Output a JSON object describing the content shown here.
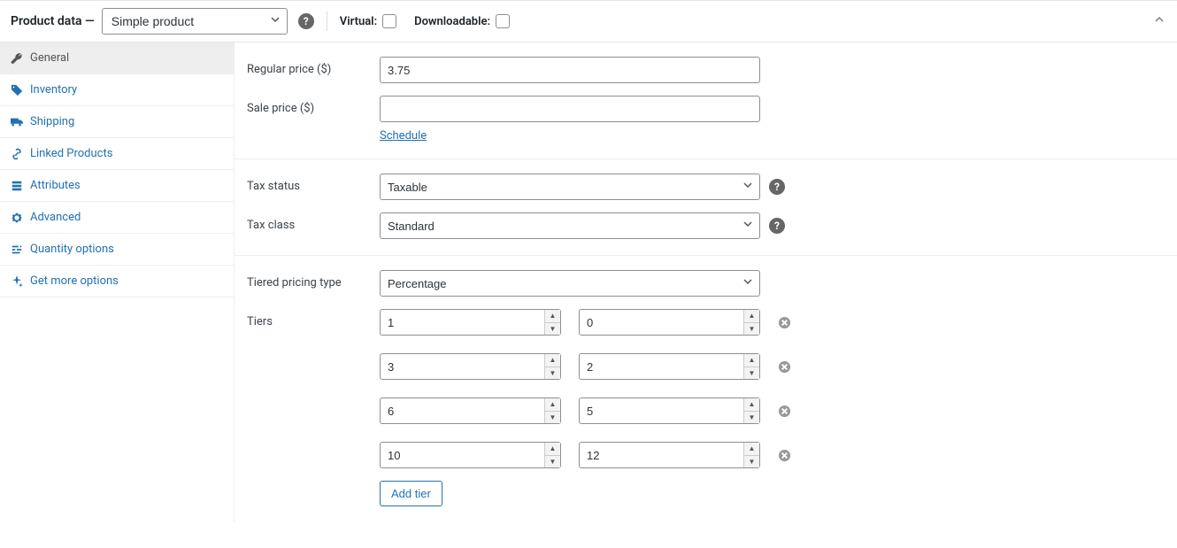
{
  "header": {
    "title": "Product data —",
    "productType": "Simple product",
    "virtualLabel": "Virtual:",
    "downloadableLabel": "Downloadable:",
    "virtualChecked": false,
    "downloadableChecked": false
  },
  "sidebar": {
    "items": [
      {
        "label": "General",
        "active": true
      },
      {
        "label": "Inventory",
        "active": false
      },
      {
        "label": "Shipping",
        "active": false
      },
      {
        "label": "Linked Products",
        "active": false
      },
      {
        "label": "Attributes",
        "active": false
      },
      {
        "label": "Advanced",
        "active": false
      },
      {
        "label": "Quantity options",
        "active": false
      },
      {
        "label": "Get more options",
        "active": false
      }
    ]
  },
  "pricing": {
    "regularPriceLabel": "Regular price ($)",
    "regularPriceValue": "3.75",
    "salePriceLabel": "Sale price ($)",
    "salePriceValue": "",
    "scheduleLabel": "Schedule"
  },
  "tax": {
    "taxStatusLabel": "Tax status",
    "taxStatusValue": "Taxable",
    "taxClassLabel": "Tax class",
    "taxClassValue": "Standard"
  },
  "tiered": {
    "typeLabel": "Tiered pricing type",
    "typeValue": "Percentage",
    "tiersLabel": "Tiers",
    "tiers": [
      {
        "qty": "1",
        "val": "0"
      },
      {
        "qty": "3",
        "val": "2"
      },
      {
        "qty": "6",
        "val": "5"
      },
      {
        "qty": "10",
        "val": "12"
      }
    ],
    "addTierLabel": "Add tier"
  },
  "colors": {
    "link": "#2271b1",
    "border": "#8c8f94",
    "text": "#3c434a",
    "sidebarActiveBg": "#eee"
  }
}
